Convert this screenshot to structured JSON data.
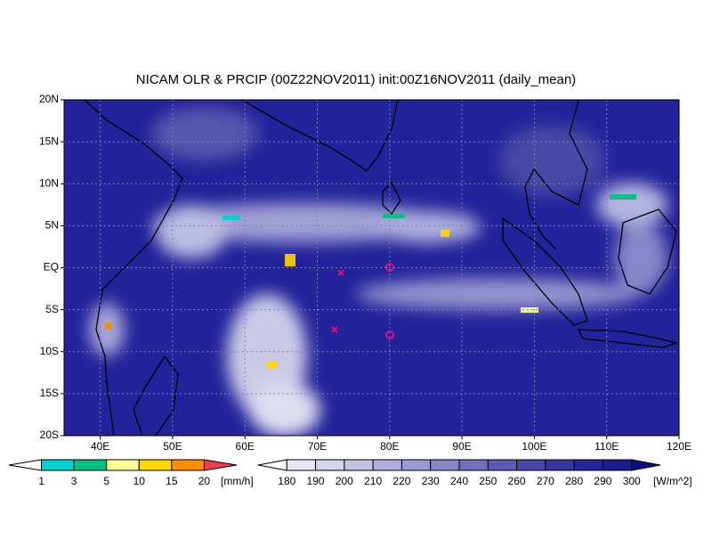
{
  "title": "NICAM OLR & PRCIP (00Z22NOV2011) init:00Z16NOV2011 (daily_mean)",
  "lat_ticks": [
    "20N",
    "15N",
    "10N",
    "5N",
    "EQ",
    "5S",
    "10S",
    "15S",
    "20S"
  ],
  "lon_ticks": [
    "40E",
    "50E",
    "60E",
    "70E",
    "80E",
    "90E",
    "100E",
    "110E",
    "120E"
  ],
  "precip_colorbar": {
    "levels": [
      1,
      3,
      5,
      10,
      15,
      20
    ],
    "unit": "[mm/h]",
    "colors": [
      "#ffffff",
      "#00d2d2",
      "#00c080",
      "#ffff9a",
      "#ffd700",
      "#ff8c00",
      "#f03c50"
    ]
  },
  "olr_colorbar": {
    "levels": [
      180,
      190,
      200,
      210,
      220,
      230,
      240,
      250,
      260,
      270,
      280,
      290,
      300
    ],
    "unit": "[W/m^2]",
    "colors": [
      "#ffffff",
      "#e6e6f2",
      "#d4d4ec",
      "#c2c2e4",
      "#aeaedc",
      "#9a9ad2",
      "#8686c8",
      "#7070be",
      "#5c5cb4",
      "#4848aa",
      "#3636a0",
      "#262698",
      "#1c1c8c",
      "#10107a"
    ]
  }
}
